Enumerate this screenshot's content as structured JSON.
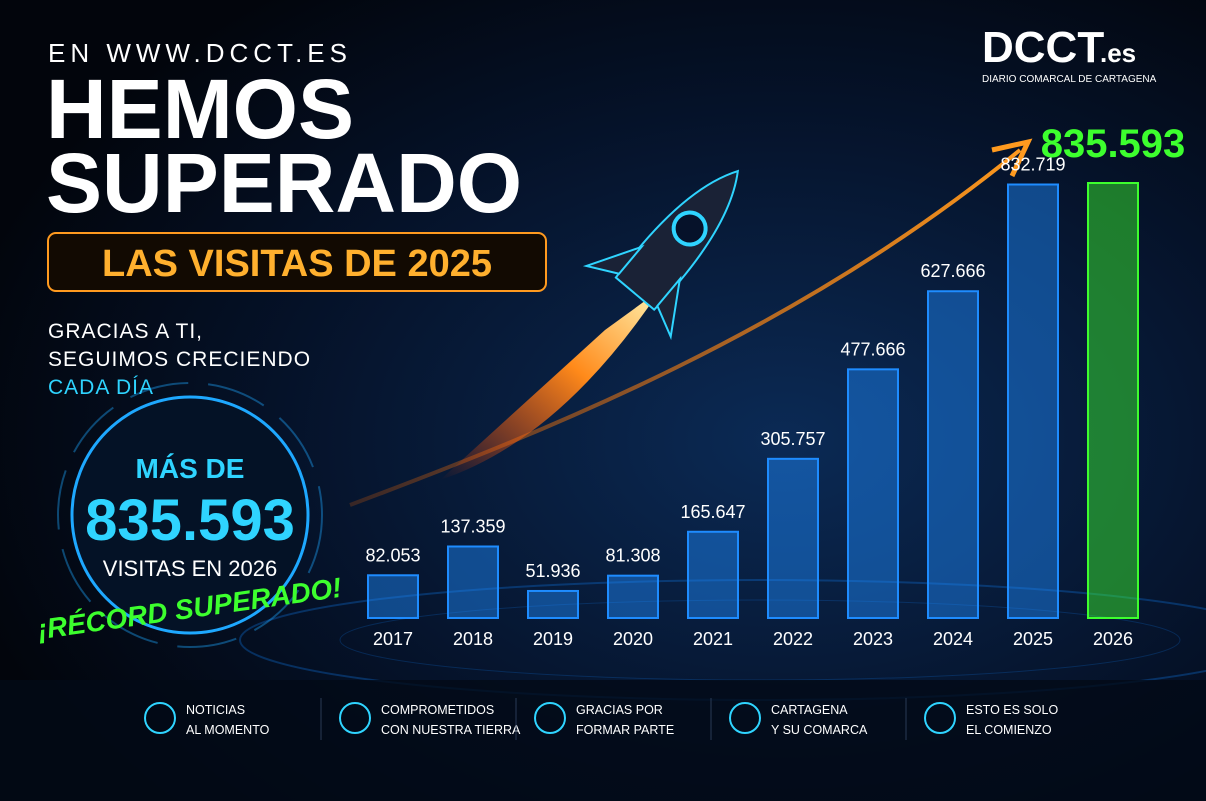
{
  "header": {
    "url": "EN WWW.DCCT.ES",
    "title_lines": [
      "HEMOS",
      "SUPERADO"
    ],
    "badge": "LAS VISITAS DE 2025",
    "tagline_lines": [
      "GRACIAS A TI,",
      "SEGUIMOS CRECIENDO",
      "CADA DÍA"
    ]
  },
  "logo": {
    "name": "DCCT",
    "suffix": ".es",
    "subtitle": "DIARIO COMARCAL DE CARTAGENA"
  },
  "highlight": {
    "prefix": "MÁS DE",
    "number": "835.593",
    "caption": "VISITAS EN 2026",
    "record": "¡RÉCORD SUPERADO!"
  },
  "features": [
    {
      "lines": [
        "NOTICIAS",
        "AL MOMENTO"
      ]
    },
    {
      "lines": [
        "COMPROMETIDOS",
        "CON NUESTRA TIERRA"
      ]
    },
    {
      "lines": [
        "GRACIAS POR",
        "FORMAR PARTE"
      ]
    },
    {
      "lines": [
        "CARTAGENA",
        "Y SU COMARCA"
      ]
    },
    {
      "lines": [
        "ESTO ES SOLO",
        "EL COMIENZO"
      ]
    }
  ],
  "chart_data": {
    "type": "bar",
    "categories": [
      "2017",
      "2018",
      "2019",
      "2020",
      "2021",
      "2022",
      "2023",
      "2024",
      "2025",
      "2026"
    ],
    "values": [
      82053,
      137359,
      51936,
      81308,
      165647,
      305757,
      477666,
      627666,
      832719,
      835593
    ],
    "value_labels": [
      "82.053",
      "137.359",
      "51.936",
      "81.308",
      "165.647",
      "305.757",
      "477.666",
      "627.666",
      "832.719",
      "835.593"
    ],
    "colors": [
      "#1e8cff",
      "#1e8cff",
      "#1e8cff",
      "#1e8cff",
      "#1e8cff",
      "#1e8cff",
      "#1e8cff",
      "#1e8cff",
      "#1e8cff",
      "#3dff2e"
    ]
  }
}
